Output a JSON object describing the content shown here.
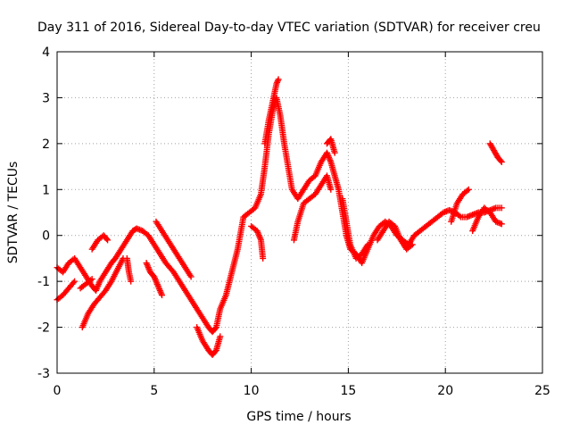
{
  "colors": {
    "series": "#ff0000",
    "grid": "#a0a0a0",
    "axis": "#000000",
    "background": "#ffffff"
  },
  "chart_data": {
    "type": "scatter",
    "title": "Day 311 of 2016, Sidereal Day-to-day VTEC variation (SDTVAR) for receiver creu",
    "xlabel": "GPS time / hours",
    "ylabel": "SDTVAR / TECUs",
    "xlim": [
      0,
      25
    ],
    "ylim": [
      -3,
      4
    ],
    "xticks": [
      0,
      5,
      10,
      15,
      20,
      25
    ],
    "yticks": [
      -3,
      -2,
      -1,
      0,
      1,
      2,
      3,
      4
    ],
    "grid": true,
    "marker": "plus",
    "series": [
      {
        "name": "SDTVAR",
        "trace": [
          [
            0.0,
            -0.7
          ],
          [
            0.3,
            -0.8
          ],
          [
            0.6,
            -0.6
          ],
          [
            0.9,
            -0.5
          ],
          [
            1.2,
            -0.7
          ],
          [
            1.5,
            -0.9
          ],
          [
            1.8,
            -1.1
          ],
          [
            2.0,
            -1.2
          ],
          [
            2.2,
            -1.0
          ],
          [
            2.5,
            -0.8
          ],
          [
            2.8,
            -0.6
          ],
          [
            3.0,
            -0.5
          ],
          [
            3.3,
            -0.3
          ],
          [
            3.6,
            -0.1
          ],
          [
            3.9,
            0.1
          ],
          [
            4.1,
            0.15
          ],
          [
            4.4,
            0.1
          ],
          [
            4.7,
            0.0
          ],
          [
            5.0,
            -0.2
          ],
          [
            5.3,
            -0.4
          ],
          [
            5.6,
            -0.6
          ],
          [
            6.0,
            -0.8
          ],
          [
            6.3,
            -1.0
          ],
          [
            6.6,
            -1.2
          ],
          [
            6.9,
            -1.4
          ],
          [
            7.2,
            -1.6
          ],
          [
            7.5,
            -1.8
          ],
          [
            7.8,
            -2.0
          ],
          [
            8.0,
            -2.1
          ],
          [
            8.2,
            -2.0
          ],
          [
            8.4,
            -1.6
          ],
          [
            8.7,
            -1.3
          ],
          [
            9.0,
            -0.8
          ],
          [
            9.3,
            -0.3
          ],
          [
            9.6,
            0.4
          ],
          [
            9.9,
            0.5
          ],
          [
            10.2,
            0.6
          ],
          [
            10.5,
            0.9
          ],
          [
            10.7,
            1.5
          ],
          [
            10.9,
            2.2
          ],
          [
            11.1,
            2.7
          ],
          [
            11.3,
            3.0
          ],
          [
            11.5,
            2.6
          ],
          [
            11.7,
            2.0
          ],
          [
            11.9,
            1.5
          ],
          [
            12.1,
            1.0
          ],
          [
            12.4,
            0.8
          ],
          [
            12.7,
            1.0
          ],
          [
            13.0,
            1.2
          ],
          [
            13.3,
            1.3
          ],
          [
            13.6,
            1.6
          ],
          [
            13.9,
            1.8
          ],
          [
            14.1,
            1.6
          ],
          [
            14.3,
            1.3
          ],
          [
            14.5,
            1.0
          ],
          [
            14.7,
            0.5
          ],
          [
            14.9,
            0.0
          ],
          [
            15.1,
            -0.3
          ],
          [
            15.4,
            -0.4
          ],
          [
            15.7,
            -0.6
          ],
          [
            16.0,
            -0.3
          ],
          [
            16.3,
            0.0
          ],
          [
            16.6,
            0.2
          ],
          [
            16.9,
            0.3
          ],
          [
            17.2,
            0.2
          ],
          [
            17.5,
            0.0
          ],
          [
            17.8,
            -0.1
          ],
          [
            18.1,
            -0.2
          ],
          [
            18.4,
            0.0
          ],
          [
            18.7,
            0.1
          ],
          [
            19.0,
            0.2
          ],
          [
            19.3,
            0.3
          ],
          [
            19.6,
            0.4
          ],
          [
            19.9,
            0.5
          ],
          [
            20.2,
            0.55
          ],
          [
            20.5,
            0.5
          ],
          [
            20.8,
            0.4
          ],
          [
            21.1,
            0.4
          ],
          [
            21.4,
            0.45
          ],
          [
            21.7,
            0.5
          ],
          [
            22.0,
            0.5
          ],
          [
            22.3,
            0.55
          ],
          [
            22.6,
            0.6
          ],
          [
            22.9,
            0.6
          ]
        ],
        "branches": [
          [
            [
              0.0,
              -1.4
            ],
            [
              0.3,
              -1.3
            ],
            [
              0.6,
              -1.15
            ],
            [
              0.9,
              -1.0
            ]
          ],
          [
            [
              1.3,
              -2.0
            ],
            [
              1.6,
              -1.7
            ],
            [
              1.9,
              -1.5
            ],
            [
              2.2,
              -1.35
            ],
            [
              2.5,
              -1.2
            ],
            [
              2.8,
              -1.0
            ],
            [
              3.1,
              -0.75
            ],
            [
              3.4,
              -0.5
            ]
          ],
          [
            [
              1.2,
              -1.15
            ],
            [
              1.5,
              -1.05
            ],
            [
              1.8,
              -0.95
            ]
          ],
          [
            [
              1.8,
              -0.3
            ],
            [
              2.1,
              -0.1
            ],
            [
              2.4,
              0.0
            ],
            [
              2.6,
              -0.1
            ]
          ],
          [
            [
              3.6,
              -0.5
            ],
            [
              3.7,
              -0.8
            ],
            [
              3.8,
              -1.0
            ]
          ],
          [
            [
              4.6,
              -0.6
            ],
            [
              4.8,
              -0.8
            ],
            [
              5.0,
              -0.9
            ],
            [
              5.2,
              -1.1
            ],
            [
              5.4,
              -1.3
            ]
          ],
          [
            [
              5.1,
              0.3
            ],
            [
              5.4,
              0.1
            ],
            [
              5.7,
              -0.1
            ],
            [
              6.0,
              -0.3
            ],
            [
              6.3,
              -0.5
            ],
            [
              6.6,
              -0.7
            ],
            [
              6.9,
              -0.9
            ]
          ],
          [
            [
              7.2,
              -2.0
            ],
            [
              7.5,
              -2.3
            ],
            [
              7.8,
              -2.5
            ],
            [
              8.0,
              -2.6
            ],
            [
              8.2,
              -2.5
            ],
            [
              8.4,
              -2.2
            ]
          ],
          [
            [
              10.0,
              0.2
            ],
            [
              10.3,
              0.1
            ],
            [
              10.5,
              -0.1
            ],
            [
              10.6,
              -0.5
            ]
          ],
          [
            [
              10.7,
              2.0
            ],
            [
              10.9,
              2.5
            ],
            [
              11.1,
              2.9
            ],
            [
              11.3,
              3.3
            ],
            [
              11.4,
              3.4
            ]
          ],
          [
            [
              12.2,
              -0.1
            ],
            [
              12.4,
              0.3
            ],
            [
              12.7,
              0.7
            ],
            [
              13.0,
              0.8
            ],
            [
              13.3,
              0.9
            ],
            [
              13.6,
              1.1
            ],
            [
              13.9,
              1.3
            ],
            [
              14.1,
              1.0
            ]
          ],
          [
            [
              13.9,
              2.0
            ],
            [
              14.1,
              2.1
            ],
            [
              14.3,
              1.8
            ]
          ],
          [
            [
              14.7,
              0.8
            ],
            [
              14.9,
              0.3
            ],
            [
              15.1,
              -0.2
            ],
            [
              15.4,
              -0.5
            ],
            [
              15.7,
              -0.4
            ],
            [
              16.0,
              -0.2
            ]
          ],
          [
            [
              16.5,
              -0.1
            ],
            [
              16.8,
              0.1
            ],
            [
              17.1,
              0.3
            ],
            [
              17.4,
              0.2
            ],
            [
              17.7,
              -0.1
            ],
            [
              18.0,
              -0.3
            ],
            [
              18.3,
              -0.2
            ]
          ],
          [
            [
              20.3,
              0.3
            ],
            [
              20.6,
              0.7
            ],
            [
              20.9,
              0.9
            ],
            [
              21.2,
              1.0
            ]
          ],
          [
            [
              21.4,
              0.1
            ],
            [
              21.7,
              0.4
            ],
            [
              22.0,
              0.6
            ],
            [
              22.3,
              0.5
            ],
            [
              22.6,
              0.3
            ],
            [
              22.9,
              0.25
            ]
          ],
          [
            [
              22.3,
              2.0
            ],
            [
              22.5,
              1.85
            ],
            [
              22.7,
              1.7
            ],
            [
              22.9,
              1.6
            ]
          ]
        ]
      }
    ]
  }
}
